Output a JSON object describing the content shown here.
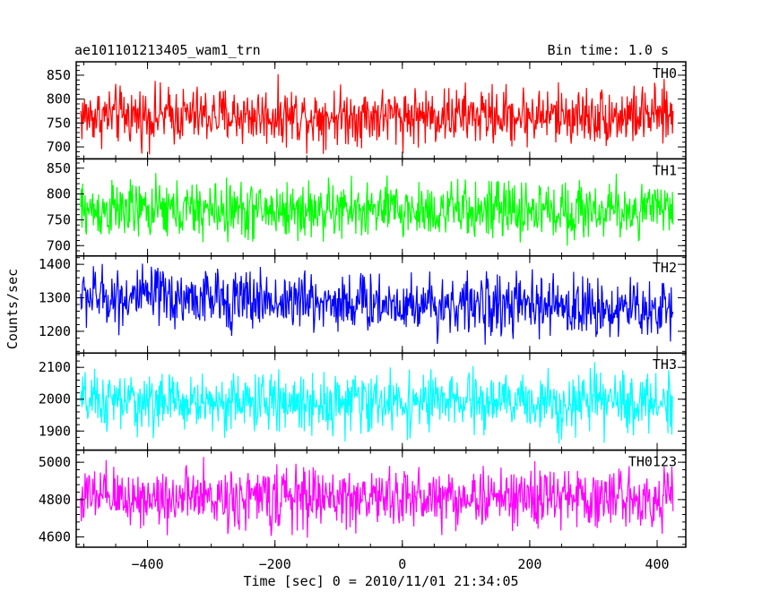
{
  "header": {
    "title": "ae101101213405_wam1_trn",
    "bin_time": "Bin time: 1.0 s"
  },
  "chart_data": {
    "type": "line",
    "xlabel": "Time [sec] 0 = 2010/11/01 21:34:05",
    "ylabel": "Counts/sec",
    "xlim": [
      -512,
      445
    ],
    "x_ticks": [
      -400,
      -200,
      0,
      200,
      400
    ],
    "x_tick_labels": [
      "−400",
      "−200",
      "0",
      "200",
      "400"
    ],
    "data_x_range": [
      -505,
      425
    ],
    "bin_time_sec": 1.0,
    "panels": [
      {
        "name": "TH0",
        "color": "#ff0000",
        "ylim": [
          675,
          878
        ],
        "yticks": [
          700,
          750,
          800,
          850
        ],
        "approx_mean": 765,
        "approx_min": 690,
        "approx_max": 878
      },
      {
        "name": "TH1",
        "color": "#00ff00",
        "ylim": [
          680,
          868
        ],
        "yticks": [
          700,
          750,
          800,
          850
        ],
        "approx_mean": 768,
        "approx_min": 690,
        "approx_max": 865
      },
      {
        "name": "TH2",
        "color": "#0000ff",
        "ylim": [
          1135,
          1425
        ],
        "yticks": [
          1200,
          1300,
          1400
        ],
        "approx_mean": 1285,
        "approx_min": 1145,
        "approx_max": 1425,
        "trend": "slight decrease over time"
      },
      {
        "name": "TH3",
        "color": "#00ffff",
        "ylim": [
          1840,
          2145
        ],
        "yticks": [
          1900,
          2000,
          2100
        ],
        "approx_mean": 1990,
        "approx_min": 1860,
        "approx_max": 2145
      },
      {
        "name": "TH0123",
        "color": "#ff00ff",
        "ylim": [
          4545,
          5065
        ],
        "yticks": [
          4600,
          4800,
          5000
        ],
        "approx_mean": 4810,
        "approx_min": 4560,
        "approx_max": 5065
      }
    ]
  }
}
